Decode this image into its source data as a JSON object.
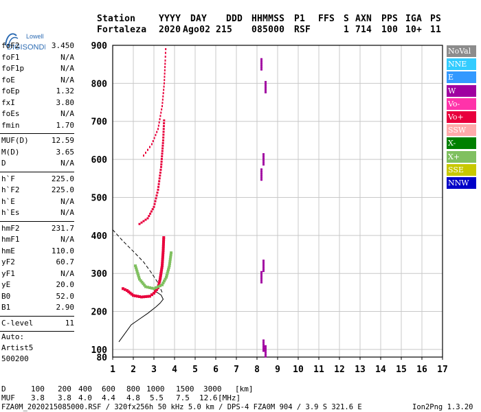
{
  "logo": {
    "line1": "Lowell",
    "line2": "DIGISONDE"
  },
  "header": {
    "labels": [
      "Station",
      "YYYY",
      "DAY",
      "DDD",
      "HHMMSS",
      "P1",
      "FFS",
      "S",
      "AXN",
      "PPS",
      "IGA",
      "PS"
    ],
    "values": [
      "Fortaleza",
      "2020",
      "Ago02",
      "215",
      "085000",
      "RSF",
      "",
      "1",
      "714",
      "100",
      "10+",
      "11"
    ]
  },
  "params_groups": [
    [
      {
        "label": "foF2",
        "value": "3.450"
      },
      {
        "label": "foF1",
        "value": "N/A"
      },
      {
        "label": "foF1p",
        "value": "N/A"
      },
      {
        "label": "foE",
        "value": "N/A"
      },
      {
        "label": "foEp",
        "value": "1.32"
      },
      {
        "label": "fxI",
        "value": "3.80"
      },
      {
        "label": "foEs",
        "value": "N/A"
      },
      {
        "label": "fmin",
        "value": "1.70"
      }
    ],
    [
      {
        "label": "MUF(D)",
        "value": "12.59"
      },
      {
        "label": "M(D)",
        "value": "3.65"
      },
      {
        "label": "D",
        "value": "N/A"
      }
    ],
    [
      {
        "label": "h`F",
        "value": "225.0"
      },
      {
        "label": "h`F2",
        "value": "225.0"
      },
      {
        "label": "h`E",
        "value": "N/A"
      },
      {
        "label": "h`Es",
        "value": "N/A"
      }
    ],
    [
      {
        "label": "hmF2",
        "value": "231.7"
      },
      {
        "label": "hmF1",
        "value": "N/A"
      },
      {
        "label": "hmE",
        "value": "110.0"
      },
      {
        "label": "yF2",
        "value": "60.7"
      },
      {
        "label": "yF1",
        "value": "N/A"
      },
      {
        "label": "yE",
        "value": "20.0"
      },
      {
        "label": "B0",
        "value": "52.0"
      },
      {
        "label": "B1",
        "value": "2.90"
      }
    ],
    [
      {
        "label": "C-level",
        "value": "11"
      }
    ]
  ],
  "autoscaling": {
    "line1": "Auto:",
    "line2": "Artist5",
    "line3": "500200"
  },
  "legend": [
    {
      "label": "NoVal",
      "color": "#8c8c8c"
    },
    {
      "label": "NNE",
      "color": "#33ccff"
    },
    {
      "label": "E",
      "color": "#3399ff"
    },
    {
      "label": "W",
      "color": "#a000a0"
    },
    {
      "label": "Vo-",
      "color": "#ff33aa"
    },
    {
      "label": "Vo+",
      "color": "#e8003c"
    },
    {
      "label": "SSW",
      "color": "#ffaaaa"
    },
    {
      "label": "X-",
      "color": "#008000"
    },
    {
      "label": "X+",
      "color": "#80c060"
    },
    {
      "label": "SSE",
      "color": "#c8c800"
    },
    {
      "label": "NNW",
      "color": "#0000c8"
    }
  ],
  "chart_data": {
    "type": "scatter",
    "xlim": [
      1,
      17
    ],
    "ylim": [
      80,
      900
    ],
    "x_ticks": [
      "1",
      "2",
      "3",
      "4",
      "5",
      "6",
      "7",
      "8",
      "9",
      "10",
      "11",
      "12",
      "13",
      "14",
      "15",
      "16",
      "17"
    ],
    "y_ticks": [
      {
        "v": 100,
        "label": "100"
      },
      {
        "v": 200,
        "label": "200"
      },
      {
        "v": 300,
        "label": "300"
      },
      {
        "v": 400,
        "label": "400"
      },
      {
        "v": 500,
        "label": "500"
      },
      {
        "v": 600,
        "label": "600"
      },
      {
        "v": 700,
        "label": "700"
      },
      {
        "v": 800,
        "label": "800"
      },
      {
        "v": 900,
        "label": "900"
      }
    ],
    "ylabel_bottom": "80",
    "grid": true,
    "profile_curve": [
      [
        1.3,
        120
      ],
      [
        1.5,
        135
      ],
      [
        1.9,
        165
      ],
      [
        2.3,
        180
      ],
      [
        2.7,
        195
      ],
      [
        3.1,
        212
      ],
      [
        3.3,
        222
      ],
      [
        3.45,
        232
      ],
      [
        3.35,
        243
      ],
      [
        3.1,
        252
      ],
      [
        2.9,
        262
      ]
    ],
    "dashed_curve": [
      [
        1.0,
        415
      ],
      [
        1.5,
        385
      ],
      [
        2.0,
        358
      ],
      [
        2.5,
        330
      ],
      [
        2.9,
        300
      ],
      [
        3.2,
        275
      ],
      [
        3.4,
        250
      ]
    ],
    "trace_o": [
      [
        1.5,
        260
      ],
      [
        1.7,
        255
      ],
      [
        2.0,
        242
      ],
      [
        2.4,
        238
      ],
      [
        2.8,
        240
      ],
      [
        3.0,
        248
      ],
      [
        3.2,
        262
      ],
      [
        3.3,
        285
      ],
      [
        3.4,
        320
      ],
      [
        3.45,
        360
      ],
      [
        3.48,
        400
      ]
    ],
    "trace_x": [
      [
        2.1,
        320
      ],
      [
        2.3,
        285
      ],
      [
        2.6,
        265
      ],
      [
        3.0,
        260
      ],
      [
        3.4,
        270
      ],
      [
        3.6,
        290
      ],
      [
        3.75,
        320
      ],
      [
        3.85,
        360
      ]
    ],
    "trace_2h_o": [
      [
        2.3,
        430
      ],
      [
        2.7,
        445
      ],
      [
        3.0,
        475
      ],
      [
        3.2,
        520
      ],
      [
        3.35,
        580
      ],
      [
        3.45,
        650
      ],
      [
        3.5,
        710
      ]
    ],
    "trace_3h_o": [
      [
        2.5,
        610
      ],
      [
        2.9,
        640
      ],
      [
        3.2,
        680
      ],
      [
        3.4,
        740
      ],
      [
        3.5,
        800
      ],
      [
        3.55,
        860
      ],
      [
        3.58,
        900
      ]
    ],
    "echoes_8mhz": [
      [
        8.2,
        850
      ],
      [
        8.4,
        790
      ],
      [
        8.3,
        600
      ],
      [
        8.2,
        560
      ],
      [
        8.3,
        320
      ],
      [
        8.2,
        290
      ],
      [
        8.3,
        110
      ],
      [
        8.4,
        95
      ]
    ]
  },
  "footer": {
    "row1_label": "D",
    "distances": [
      "100",
      "200",
      "400",
      "600",
      "800",
      "1000",
      "1500",
      "3000",
      "[km]"
    ],
    "row2_label": "MUF",
    "mufs": [
      "3.8",
      "3.8",
      "4.0",
      "4.4",
      "4.8",
      "5.5",
      "7.5",
      "12.6",
      "[MHz]"
    ],
    "info": "FZA0M_2020215085000.RSF / 320fx256h 50 kHz 5.0 km / DPS-4 FZA0M 904 / 3.9 S 321.6 E",
    "version": "Ion2Png 1.3.20"
  }
}
